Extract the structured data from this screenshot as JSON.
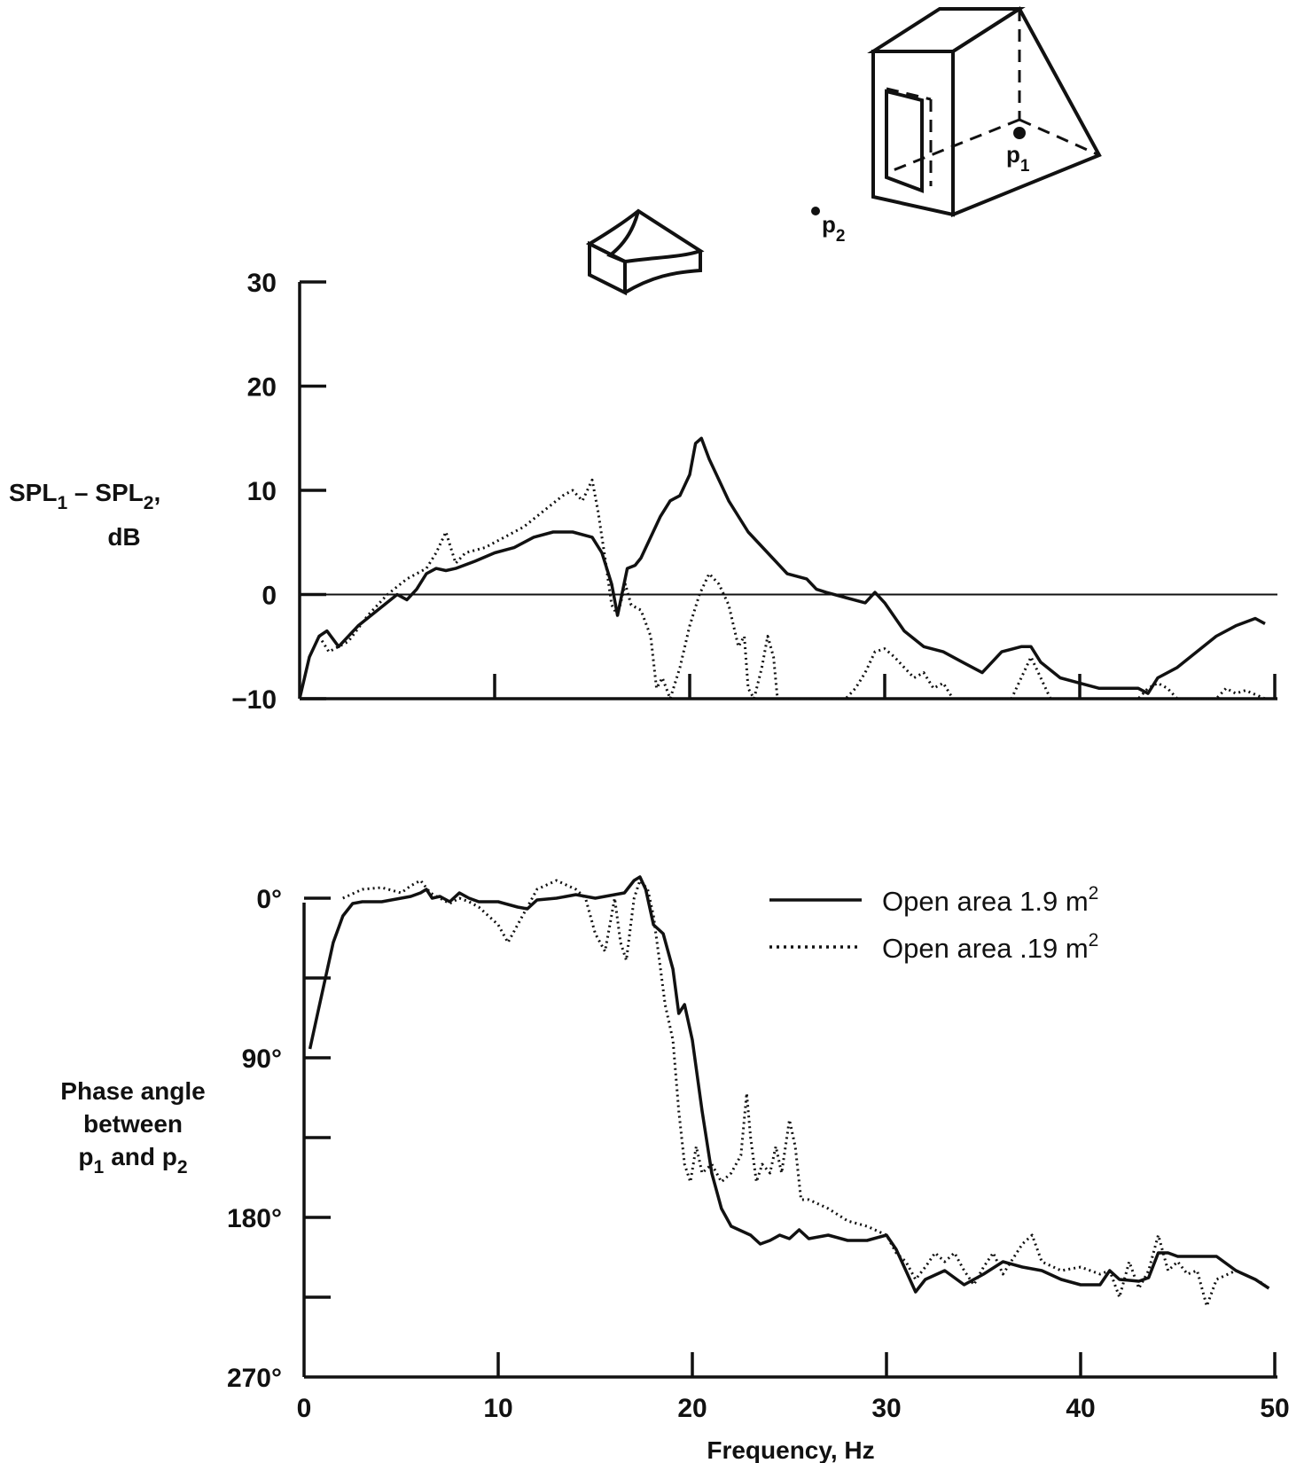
{
  "chart_data": [
    {
      "type": "line",
      "ylabel_lines": [
        "SPL",
        "1",
        " – SPL",
        "2",
        ",",
        "dB"
      ],
      "ylim": [
        -10,
        30
      ],
      "yticks": [
        -10,
        0,
        10,
        20,
        30
      ],
      "ytick_labels": [
        "−10",
        "0",
        "10",
        "20",
        "30"
      ],
      "xlim": [
        0,
        50
      ],
      "xticks": [
        0,
        10,
        20,
        30,
        40,
        50
      ],
      "reference_line": 0,
      "series": [
        {
          "name": "Open area 1.9 m²",
          "style": "solid",
          "x": [
            0,
            0.5,
            1.0,
            1.4,
            2.0,
            3.0,
            4.0,
            5.0,
            5.5,
            6.0,
            6.5,
            7.0,
            7.5,
            8.0,
            9.0,
            10.0,
            11.0,
            12.0,
            13.0,
            14.0,
            15.0,
            15.5,
            16.0,
            16.3,
            16.8,
            17.2,
            17.5,
            18.0,
            18.5,
            19.0,
            19.5,
            20.0,
            20.3,
            20.6,
            21.0,
            21.5,
            22.0,
            23.0,
            24.0,
            25.0,
            26.0,
            26.5,
            27.0,
            28.0,
            29.0,
            29.5,
            30.0,
            31.0,
            32.0,
            33.0,
            34.0,
            35.0,
            36.0,
            37.0,
            37.5,
            38.0,
            39.0,
            40.0,
            41.0,
            42.0,
            43.0,
            43.5,
            44.0,
            45.0,
            46.0,
            47.0,
            48.0,
            49.0,
            49.5
          ],
          "y": [
            -10,
            -6,
            -4,
            -3.5,
            -5,
            -3,
            -1.5,
            0,
            -0.5,
            0.5,
            2,
            2.5,
            2.3,
            2.5,
            3.2,
            4.0,
            4.5,
            5.5,
            6.0,
            6.0,
            5.5,
            4.0,
            1.0,
            -2.0,
            2.5,
            2.8,
            3.5,
            5.5,
            7.5,
            9.0,
            9.5,
            11.5,
            14.5,
            15.0,
            13.0,
            11.0,
            9.0,
            6.0,
            4.0,
            2.0,
            1.5,
            0.5,
            0.2,
            -0.3,
            -0.8,
            0.2,
            -0.8,
            -3.5,
            -5.0,
            -5.5,
            -6.5,
            -7.5,
            -5.5,
            -5.0,
            -5.0,
            -6.5,
            -8.0,
            -8.5,
            -9.0,
            -9.0,
            -9.0,
            -9.5,
            -8.0,
            -7.0,
            -5.5,
            -4.0,
            -3.0,
            -2.3,
            -2.8
          ]
        },
        {
          "name": "Open area .19 m²",
          "style": "dotted",
          "x": [
            1.0,
            1.5,
            2.5,
            3.5,
            4.5,
            5.5,
            6.5,
            7.0,
            7.5,
            8.0,
            8.5,
            9.5,
            10.5,
            11.5,
            12.5,
            13.5,
            14.0,
            14.5,
            15.0,
            15.3,
            15.7,
            16.0,
            16.3,
            16.7,
            17.0,
            17.5,
            18.0,
            18.3,
            18.6,
            19.0,
            19.5,
            20.0,
            20.5,
            21.0,
            21.5,
            22.0,
            22.5,
            22.8,
            23.0,
            23.3,
            23.7,
            24.0,
            24.3,
            24.5,
            24.8,
            25.0,
            26.0,
            27.0,
            28.0,
            28.5,
            29.0,
            29.5,
            30.0,
            30.5,
            31.0,
            31.5,
            32.0,
            32.5,
            33.0,
            33.5,
            34.0,
            34.5,
            36.0,
            36.5,
            37.0,
            37.5,
            38.0,
            38.5,
            40.0,
            42.0,
            43.0,
            43.5,
            44.0,
            44.5,
            45.0,
            46.0,
            47.0,
            47.5,
            48.0,
            48.5,
            49.0,
            49.5
          ],
          "y": [
            -4,
            -5.5,
            -4.5,
            -2,
            0,
            1.5,
            2.5,
            4.0,
            6.0,
            3.0,
            4.0,
            4.5,
            5.5,
            6.5,
            8.0,
            9.5,
            10.0,
            9.0,
            11.0,
            8.0,
            3.0,
            -1.0,
            -2.0,
            1.0,
            -1.0,
            -1.5,
            -4.0,
            -9.0,
            -8.0,
            -10.0,
            -7.0,
            -3.0,
            0.0,
            2.0,
            1.0,
            -1.0,
            -5.0,
            -4.0,
            -9.0,
            -10.0,
            -7.0,
            -4.0,
            -6.0,
            -10.0,
            -10.0,
            -10.0,
            -10.0,
            -10.0,
            -10.0,
            -9.0,
            -7.5,
            -5.5,
            -5.2,
            -6.0,
            -7.0,
            -8.0,
            -7.5,
            -9.0,
            -8.5,
            -10.0,
            -10.0,
            -10.0,
            -10.0,
            -10.0,
            -8.0,
            -6.0,
            -8.0,
            -10.0,
            -10.0,
            -10.0,
            -10.0,
            -9.0,
            -8.5,
            -9.0,
            -10.0,
            -10.0,
            -10.0,
            -9.0,
            -9.5,
            -9.2,
            -9.6,
            -10.0
          ]
        }
      ]
    },
    {
      "type": "line",
      "ylabel_lines": [
        "Phase angle",
        "between",
        "p",
        "1",
        "and p",
        "2"
      ],
      "ylim": [
        0,
        270
      ],
      "yticks": [
        0,
        45,
        90,
        135,
        180,
        225,
        270
      ],
      "ytick_labels": [
        "0°",
        "",
        "90°",
        "",
        "180°",
        "",
        "270°"
      ],
      "y_inverted": true,
      "xlim": [
        0,
        50
      ],
      "xticks": [
        0,
        10,
        20,
        30,
        40,
        50
      ],
      "xtick_labels": [
        "0",
        "10",
        "20",
        "30",
        "40",
        "50"
      ],
      "xlabel": "Frequency, Hz",
      "series": [
        {
          "name": "Open area 1.9 m²",
          "style": "solid",
          "x": [
            0.3,
            0.7,
            1.0,
            1.5,
            2.0,
            2.5,
            3.0,
            4.0,
            5.0,
            5.5,
            6.0,
            6.3,
            6.6,
            7.0,
            7.5,
            8.0,
            8.5,
            9.0,
            10.0,
            11.0,
            11.5,
            12.0,
            13.0,
            14.0,
            15.0,
            16.0,
            16.5,
            17.0,
            17.3,
            17.6,
            18.0,
            18.5,
            19.0,
            19.3,
            19.6,
            20.0,
            20.5,
            21.0,
            21.5,
            22.0,
            23.0,
            23.5,
            24.0,
            24.5,
            25.0,
            25.5,
            26.0,
            27.0,
            28.0,
            29.0,
            30.0,
            30.5,
            31.0,
            31.5,
            32.0,
            33.0,
            34.0,
            35.0,
            36.0,
            37.0,
            38.0,
            39.0,
            40.0,
            41.0,
            41.5,
            42.0,
            43.0,
            43.5,
            44.0,
            44.5,
            45.0,
            46.0,
            47.0,
            48.0,
            49.0,
            49.7
          ],
          "y": [
            85,
            65,
            50,
            25,
            10,
            3,
            2,
            2,
            0,
            -1,
            -3,
            -5,
            0,
            -1,
            2,
            -3,
            0,
            2,
            2,
            5,
            6,
            1,
            0,
            -2,
            0,
            -2,
            -3,
            -10,
            -12,
            -5,
            15,
            20,
            40,
            65,
            60,
            80,
            120,
            155,
            175,
            185,
            190,
            195,
            193,
            190,
            192,
            187,
            192,
            190,
            193,
            193,
            190,
            198,
            210,
            222,
            215,
            210,
            218,
            212,
            205,
            208,
            210,
            215,
            218,
            218,
            210,
            215,
            216,
            214,
            200,
            200,
            202,
            202,
            202,
            210,
            215,
            220
          ]
        },
        {
          "name": "Open area .19 m²",
          "style": "dotted",
          "x": [
            2.0,
            3.0,
            4.0,
            5.0,
            5.5,
            6.0,
            6.5,
            7.0,
            7.5,
            8.0,
            8.5,
            9.0,
            10.0,
            10.5,
            11.0,
            11.5,
            12.0,
            13.0,
            14.0,
            14.5,
            15.0,
            15.5,
            16.0,
            16.3,
            16.6,
            17.0,
            17.3,
            17.7,
            18.0,
            18.3,
            18.6,
            19.0,
            19.3,
            19.6,
            19.9,
            20.2,
            20.5,
            21.0,
            21.5,
            22.0,
            22.5,
            22.8,
            23.0,
            23.3,
            23.6,
            24.0,
            24.3,
            24.6,
            25.0,
            25.3,
            25.6,
            26.0,
            27.0,
            28.0,
            29.0,
            30.0,
            30.5,
            31.0,
            31.5,
            32.0,
            32.5,
            33.0,
            33.5,
            34.0,
            34.5,
            35.0,
            35.5,
            36.0,
            37.0,
            37.5,
            38.0,
            39.0,
            40.0,
            41.0,
            41.5,
            42.0,
            42.5,
            43.0,
            43.5,
            44.0,
            44.5,
            45.0,
            45.5,
            46.0,
            46.5,
            47.0,
            48.0,
            49.0,
            49.5
          ],
          "y": [
            0,
            -5,
            -6,
            -3,
            -7,
            -10,
            -3,
            0,
            3,
            0,
            2,
            5,
            15,
            25,
            15,
            5,
            -5,
            -10,
            -5,
            0,
            20,
            30,
            0,
            25,
            35,
            0,
            -10,
            -5,
            10,
            35,
            60,
            80,
            120,
            150,
            160,
            140,
            155,
            150,
            160,
            155,
            145,
            110,
            135,
            160,
            150,
            155,
            140,
            155,
            125,
            140,
            170,
            170,
            175,
            182,
            185,
            190,
            200,
            205,
            215,
            208,
            200,
            205,
            200,
            210,
            218,
            208,
            200,
            212,
            195,
            190,
            205,
            210,
            208,
            212,
            210,
            225,
            205,
            220,
            210,
            190,
            210,
            205,
            212,
            210,
            230,
            215,
            210,
            215,
            218
          ]
        }
      ]
    }
  ],
  "legend": [
    {
      "text": "Open area  1.9  m",
      "sup": "2"
    },
    {
      "text": "Open area  .19  m",
      "sup": "2"
    }
  ],
  "diagram": {
    "p1_label": "p",
    "p1_sub": "1",
    "p2_label": "p",
    "p2_sub": "2"
  }
}
